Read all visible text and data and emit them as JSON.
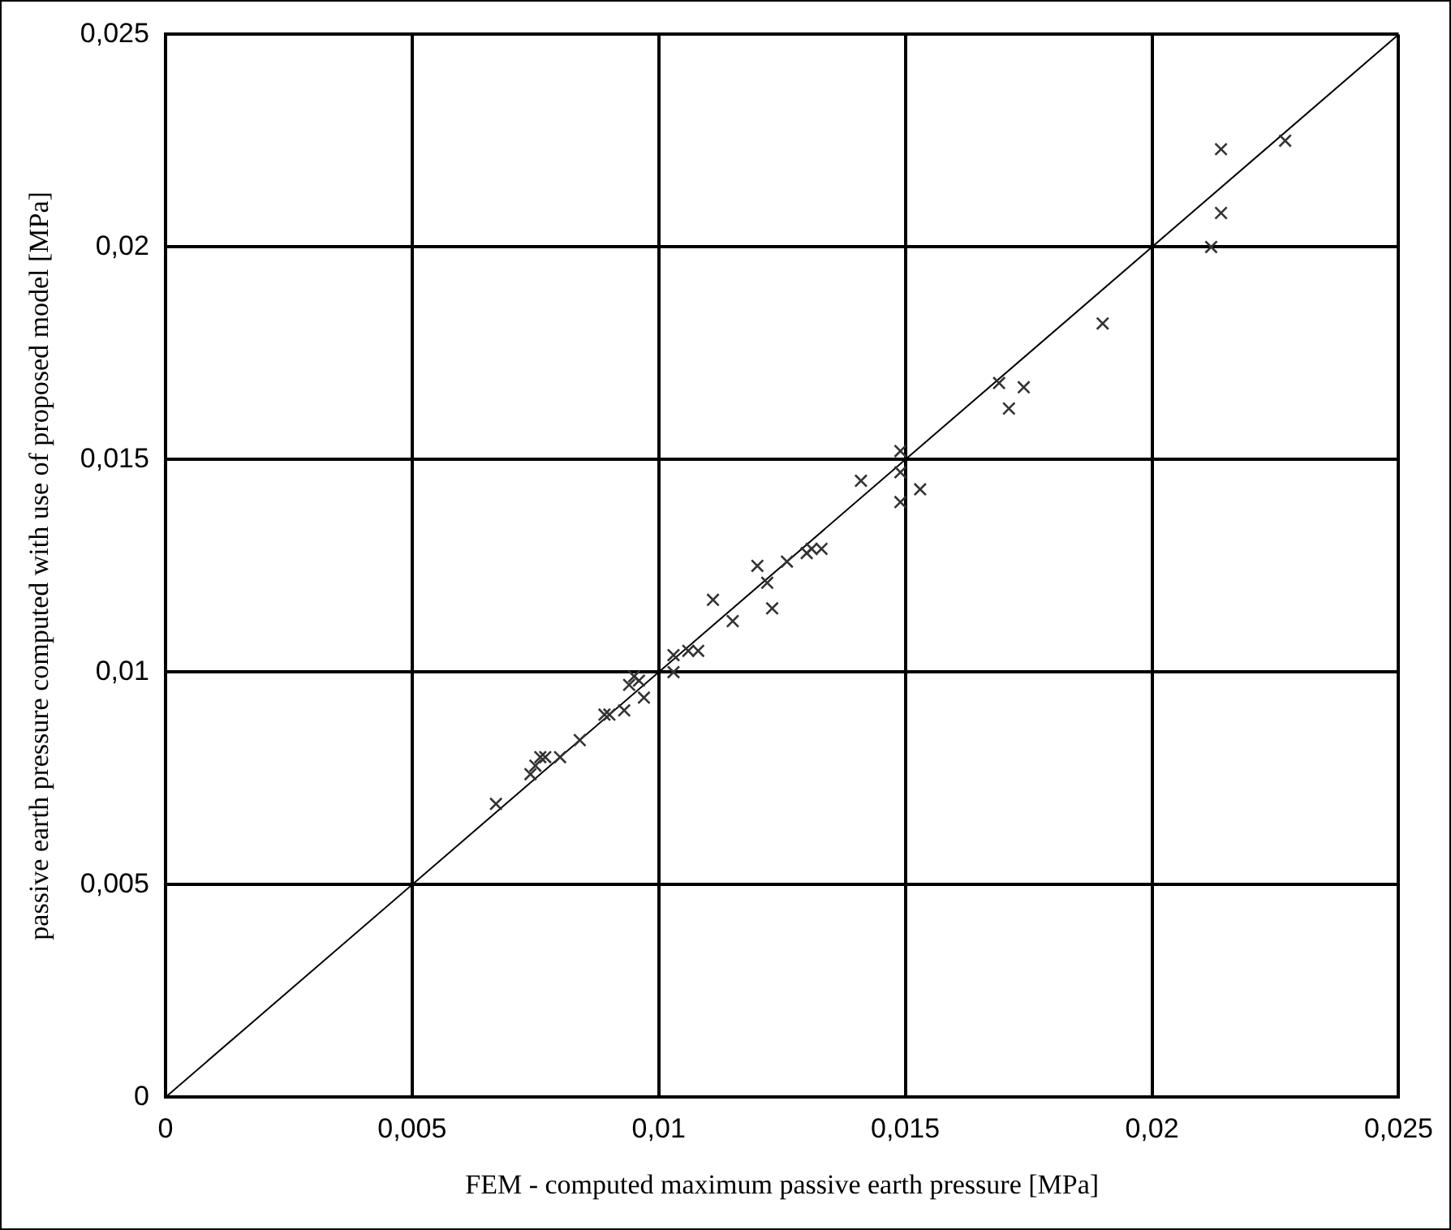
{
  "chart_data": {
    "type": "scatter",
    "xlabel": "FEM - computed maximum passive earth pressure [MPa]",
    "ylabel": "passive earth pressure computed with use of proposed model [MPa]",
    "xlim": [
      0,
      0.025
    ],
    "ylim": [
      0,
      0.025
    ],
    "xticks": [
      0,
      {
        "value": 0.005,
        "label": "0,005"
      },
      {
        "value": 0.01,
        "label": "0,01"
      },
      {
        "value": 0.015,
        "label": "0,015"
      },
      {
        "value": 0.02,
        "label": "0,02"
      },
      {
        "value": 0.025,
        "label": "0,025"
      }
    ],
    "yticks": [
      0,
      {
        "value": 0.005,
        "label": "0,005"
      },
      {
        "value": 0.01,
        "label": "0,01"
      },
      {
        "value": 0.015,
        "label": "0,015"
      },
      {
        "value": 0.02,
        "label": "0,02"
      },
      {
        "value": 0.025,
        "label": "0,025"
      }
    ],
    "grid": true,
    "legend": false,
    "series": [
      {
        "color": "#333333",
        "marker": "cross",
        "x": [
          0.0067,
          0.0074,
          0.0075,
          0.0076,
          0.0077,
          0.008,
          0.0084,
          0.0089,
          0.009,
          0.0093,
          0.0094,
          0.0096,
          0.0095,
          0.0097,
          0.0103,
          0.0103,
          0.0106,
          0.0108,
          0.0111,
          0.0115,
          0.0123,
          0.0122,
          0.012,
          0.0126,
          0.013,
          0.0131,
          0.0133,
          0.0141,
          0.0149,
          0.0149,
          0.0153,
          0.0149,
          0.0169,
          0.0171,
          0.0174,
          0.019,
          0.0212,
          0.0214,
          0.0214,
          0.0227
        ],
        "values": [
          0.0069,
          0.0076,
          0.0078,
          0.008,
          0.008,
          0.008,
          0.0084,
          0.009,
          0.009,
          0.0091,
          0.0097,
          0.0098,
          0.0099,
          0.0094,
          0.01,
          0.0104,
          0.0105,
          0.0105,
          0.0117,
          0.0112,
          0.0115,
          0.0121,
          0.0125,
          0.0126,
          0.0128,
          0.0129,
          0.0129,
          0.0145,
          0.0152,
          0.0147,
          0.0143,
          0.014,
          0.0168,
          0.0162,
          0.0167,
          0.0182,
          0.02,
          0.0208,
          0.0223,
          0.0225
        ]
      },
      {
        "type": "line",
        "color": "#000000",
        "marker": "none",
        "line_style": "solid",
        "x": [
          0,
          0.025
        ],
        "values": [
          0,
          0.025
        ]
      }
    ]
  }
}
